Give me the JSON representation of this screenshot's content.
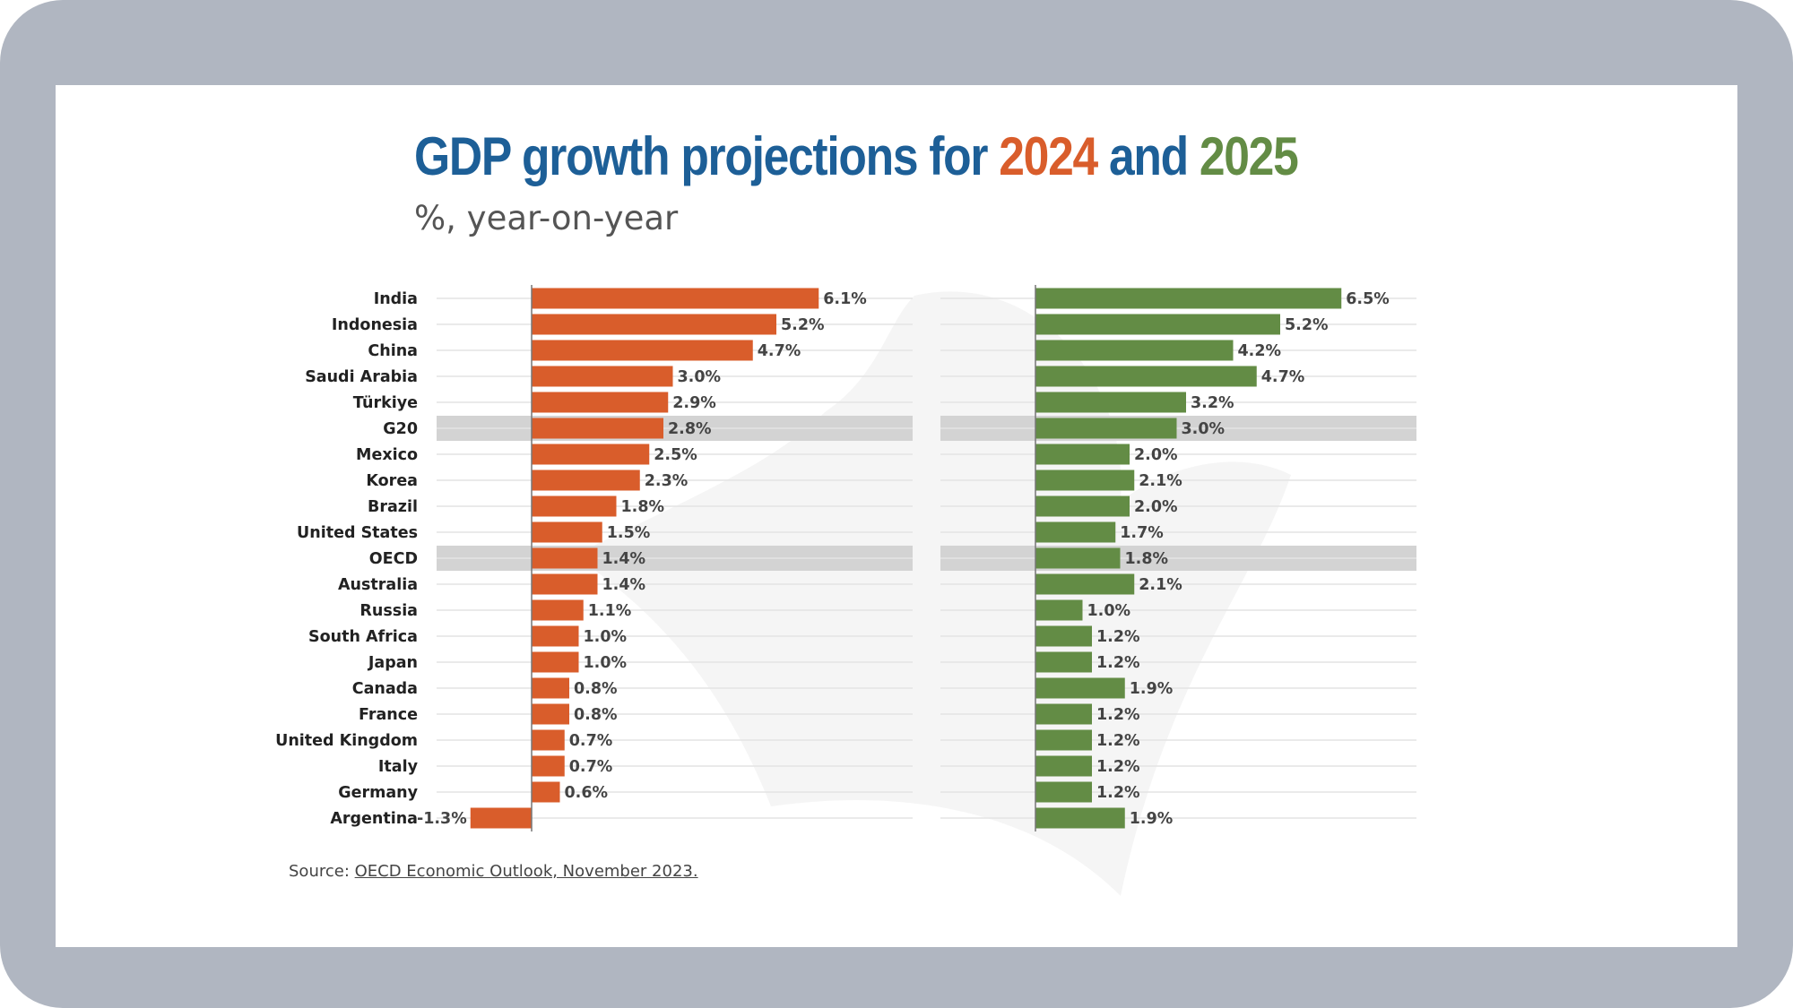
{
  "title": {
    "part1": "GDP growth projections for ",
    "year1": "2024",
    "part2": " and ",
    "year2": "2025"
  },
  "subtitle": "%, year-on-year",
  "source": {
    "prefix": "Source: ",
    "link_text": "OECD Economic Outlook, November 2023."
  },
  "colors": {
    "title_blue": "#1d5f97",
    "series_2024": "#d95d2b",
    "series_2025": "#638c45",
    "highlight_band": "#d3d3d3",
    "grid": "#e4e4e4"
  },
  "chart_data": {
    "type": "bar",
    "orientation": "horizontal",
    "categories": [
      "India",
      "Indonesia",
      "China",
      "Saudi Arabia",
      "Türkiye",
      "G20",
      "Mexico",
      "Korea",
      "Brazil",
      "United States",
      "OECD",
      "Australia",
      "Russia",
      "South Africa",
      "Japan",
      "Canada",
      "France",
      "United Kingdom",
      "Italy",
      "Germany",
      "Argentina"
    ],
    "highlighted_categories": [
      "G20",
      "OECD"
    ],
    "series": [
      {
        "name": "2024",
        "values": [
          6.1,
          5.2,
          4.7,
          3.0,
          2.9,
          2.8,
          2.5,
          2.3,
          1.8,
          1.5,
          1.4,
          1.4,
          1.1,
          1.0,
          1.0,
          0.8,
          0.8,
          0.7,
          0.7,
          0.6,
          -1.3
        ],
        "labels": [
          "6.1%",
          "5.2%",
          "4.7%",
          "3.0%",
          "2.9%",
          "2.8%",
          "2.5%",
          "2.3%",
          "1.8%",
          "1.5%",
          "1.4%",
          "1.4%",
          "1.1%",
          "1.0%",
          "1.0%",
          "0.8%",
          "0.8%",
          "0.7%",
          "0.7%",
          "0.6%",
          "-1.3%"
        ]
      },
      {
        "name": "2025",
        "values": [
          6.5,
          5.2,
          4.2,
          4.7,
          3.2,
          3.0,
          2.0,
          2.1,
          2.0,
          1.7,
          1.8,
          2.1,
          1.0,
          1.2,
          1.2,
          1.9,
          1.2,
          1.2,
          1.2,
          1.2,
          1.9
        ],
        "labels": [
          "6.5%",
          "5.2%",
          "4.2%",
          "4.7%",
          "3.2%",
          "3.0%",
          "2.0%",
          "2.1%",
          "2.0%",
          "1.7%",
          "1.8%",
          "2.1%",
          "1.0%",
          "1.2%",
          "1.2%",
          "1.9%",
          "1.2%",
          "1.2%",
          "1.2%",
          "1.2%",
          "1.9%"
        ]
      }
    ],
    "grid": true,
    "legend": "title"
  }
}
